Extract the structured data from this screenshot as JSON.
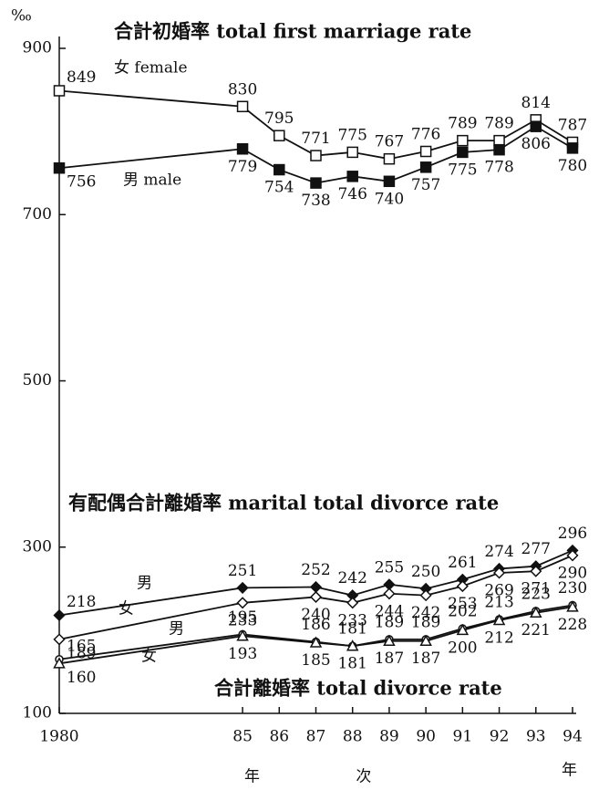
{
  "chart_data": {
    "type": "line",
    "y_unit": "‰",
    "titles": [
      "合計初婚率 total first marriage rate",
      "有配偶合計離婚率 marital total divorce rate",
      "合計離婚率 total divorce rate"
    ],
    "xlabel": "年 次",
    "xunit": "年",
    "xlim": [
      1980,
      1994
    ],
    "xticks": [
      {
        "value": 1980,
        "label": "1980"
      },
      {
        "value": 1985,
        "label": "85"
      },
      {
        "value": 1986,
        "label": "86"
      },
      {
        "value": 1987,
        "label": "87"
      },
      {
        "value": 1988,
        "label": "88"
      },
      {
        "value": 1989,
        "label": "89"
      },
      {
        "value": 1990,
        "label": "90"
      },
      {
        "value": 1991,
        "label": "91"
      },
      {
        "value": 1992,
        "label": "92"
      },
      {
        "value": 1993,
        "label": "93"
      },
      {
        "value": 1994,
        "label": "94"
      }
    ],
    "ylim": [
      100,
      900
    ],
    "yticks": [
      100,
      300,
      500,
      700,
      900
    ],
    "series": [
      {
        "name": "女 female",
        "color": "#111",
        "marker": "square-open",
        "x": [
          1980,
          1985,
          1986,
          1987,
          1988,
          1989,
          1990,
          1991,
          1992,
          1993,
          1994
        ],
        "values": [
          849,
          830,
          795,
          771,
          775,
          767,
          776,
          789,
          789,
          814,
          787
        ]
      },
      {
        "name": "男 male",
        "color": "#111",
        "marker": "square-filled",
        "x": [
          1980,
          1985,
          1986,
          1987,
          1988,
          1989,
          1990,
          1991,
          1992,
          1993,
          1994
        ],
        "values": [
          756,
          779,
          754,
          738,
          746,
          740,
          757,
          775,
          778,
          806,
          780
        ]
      },
      {
        "name": "男",
        "color": "#111",
        "marker": "diamond-filled",
        "x": [
          1980,
          1985,
          1987,
          1988,
          1989,
          1990,
          1991,
          1992,
          1993,
          1994
        ],
        "values": [
          218,
          251,
          252,
          242,
          255,
          250,
          261,
          274,
          277,
          296
        ]
      },
      {
        "name": "女",
        "color": "#111",
        "marker": "diamond-open",
        "x": [
          1980,
          1985,
          1987,
          1988,
          1989,
          1990,
          1991,
          1992,
          1993,
          1994
        ],
        "values": [
          189,
          233,
          240,
          233,
          244,
          242,
          253,
          269,
          271,
          290
        ]
      },
      {
        "name": "男",
        "color": "#111",
        "marker": "circle-open",
        "x": [
          1980,
          1985,
          1987,
          1988,
          1989,
          1990,
          1991,
          1992,
          1993,
          1994
        ],
        "values": [
          165,
          195,
          186,
          181,
          189,
          189,
          202,
          213,
          223,
          230
        ]
      },
      {
        "name": "女",
        "color": "#111",
        "marker": "triangle-open",
        "x": [
          1980,
          1985,
          1987,
          1988,
          1989,
          1990,
          1991,
          1992,
          1993,
          1994
        ],
        "values": [
          160,
          193,
          185,
          181,
          187,
          187,
          200,
          212,
          221,
          228
        ]
      }
    ]
  }
}
